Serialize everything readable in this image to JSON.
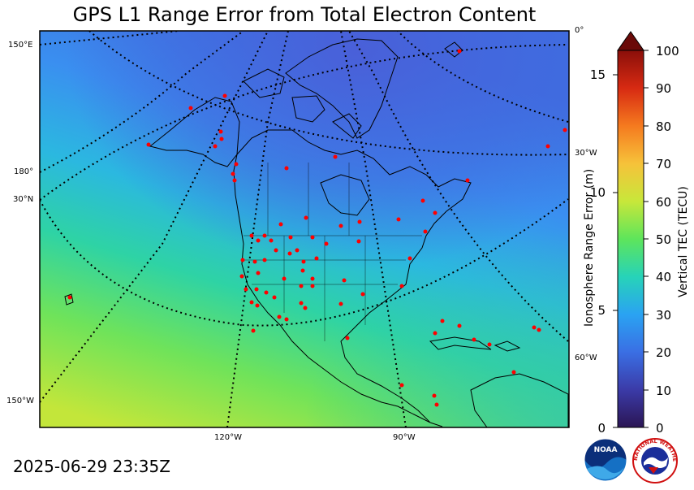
{
  "title": "GPS L1 Range Error from Total Electron Content",
  "timestamp": "2025-06-29 23:35Z",
  "map_labels": {
    "lon_150e": "150°E",
    "lon_180": "180°",
    "lat_30n": "30°N",
    "lon_150w": "150°W",
    "lon_120w": "120°W",
    "lon_90w": "90°W",
    "lon_0": "0°",
    "lon_30w": "30°W",
    "lon_60w": "60°W"
  },
  "colorbar": {
    "label": "Vertical TEC (TECU)",
    "ticks": [
      "0",
      "10",
      "20",
      "30",
      "40",
      "50",
      "60",
      "70",
      "80",
      "90",
      "100"
    ],
    "range_label": "Ionosphere Range Error (m)",
    "range_ticks": [
      "0",
      "5",
      "10",
      "15"
    ],
    "colors": {
      "c0": "#2b1554",
      "c1": "#3b4fc4",
      "c2": "#2aa3f2",
      "c3": "#27d3b8",
      "c4": "#5ee55b",
      "c5": "#c8e73a",
      "c6": "#f6c23a",
      "c7": "#f57a1f",
      "c8": "#d72a12",
      "c9": "#8a0f0a"
    }
  },
  "logos": {
    "noaa": "NOAA",
    "nws": "NATIONAL WEATHER SERVICE"
  },
  "style": {
    "station_color": "#ff0000",
    "coast_color": "#000000"
  }
}
